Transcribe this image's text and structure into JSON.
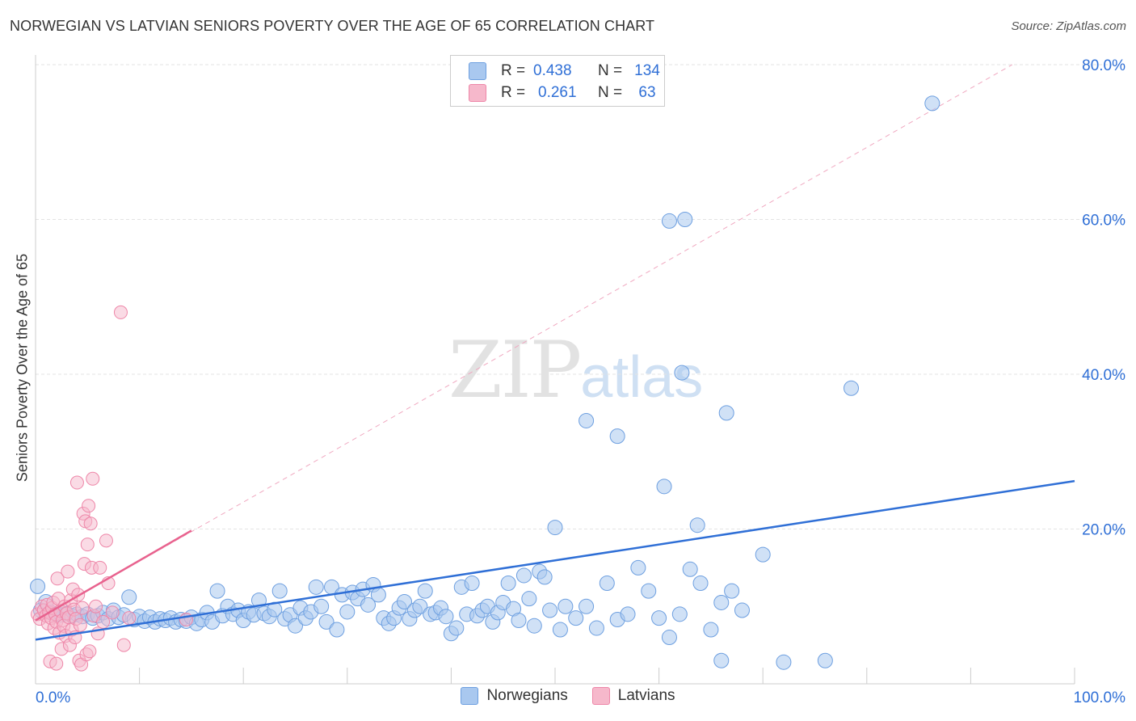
{
  "title": "NORWEGIAN VS LATVIAN SENIORS POVERTY OVER THE AGE OF 65 CORRELATION CHART",
  "source": "Source: ZipAtlas.com",
  "watermark": {
    "zip": "ZIP",
    "atlas": "atlas"
  },
  "stats": {
    "r_label": "R =",
    "n_label": "N =",
    "norwegians": {
      "r": "0.438",
      "n": "134"
    },
    "latvians": {
      "r": "0.261",
      "n": "63"
    }
  },
  "legend": {
    "norwegians": "Norwegians",
    "latvians": "Latvians"
  },
  "colors": {
    "blue_fill": "#a9c8ef",
    "blue_stroke": "#6d9fe0",
    "blue_line": "#2f6fd6",
    "pink_fill": "#f6b8cb",
    "pink_stroke": "#ee86a8",
    "pink_line": "#e8628e",
    "axis_text": "#2f6fd6"
  },
  "chart_data": {
    "type": "scatter",
    "title": "NORWEGIAN VS LATVIAN SENIORS POVERTY OVER THE AGE OF 65 CORRELATION CHART",
    "xlabel": "",
    "ylabel": "Seniors Poverty Over the Age of 65",
    "xlim": [
      0,
      100
    ],
    "ylim": [
      0,
      80
    ],
    "x_tick_labels": [
      "0.0%",
      "100.0%"
    ],
    "y_ticks": [
      20,
      40,
      60,
      80
    ],
    "y_tick_labels": [
      "20.0%",
      "40.0%",
      "60.0%",
      "80.0%"
    ],
    "grid": true,
    "series": [
      {
        "name": "Norwegians",
        "r": 0.438,
        "n": 134,
        "trend": {
          "x": [
            0,
            100
          ],
          "y": [
            5.7,
            26.2
          ]
        },
        "points": [
          [
            0.2,
            12.6
          ],
          [
            0.5,
            9.5
          ],
          [
            1.0,
            10.6
          ],
          [
            1.5,
            9.2
          ],
          [
            2.0,
            9.0
          ],
          [
            2.5,
            8.9
          ],
          [
            3.0,
            9.1
          ],
          [
            3.5,
            8.8
          ],
          [
            4.0,
            9.0
          ],
          [
            4.5,
            8.7
          ],
          [
            5.0,
            9.0
          ],
          [
            5.5,
            8.5
          ],
          [
            6.0,
            8.8
          ],
          [
            6.5,
            9.2
          ],
          [
            7.0,
            8.4
          ],
          [
            7.5,
            9.5
          ],
          [
            8.0,
            8.6
          ],
          [
            8.5,
            8.9
          ],
          [
            9.0,
            11.2
          ],
          [
            9.5,
            8.3
          ],
          [
            10.0,
            8.7
          ],
          [
            10.5,
            8.1
          ],
          [
            11.0,
            8.6
          ],
          [
            11.5,
            8.0
          ],
          [
            12.0,
            8.4
          ],
          [
            12.5,
            8.2
          ],
          [
            13.0,
            8.5
          ],
          [
            13.5,
            8.0
          ],
          [
            14.0,
            8.3
          ],
          [
            14.5,
            8.1
          ],
          [
            15.0,
            8.6
          ],
          [
            15.5,
            7.8
          ],
          [
            16.0,
            8.3
          ],
          [
            16.5,
            9.2
          ],
          [
            17.0,
            8.0
          ],
          [
            17.5,
            12.0
          ],
          [
            18.0,
            8.8
          ],
          [
            18.5,
            10.0
          ],
          [
            19.0,
            9.0
          ],
          [
            19.5,
            9.5
          ],
          [
            20.0,
            8.2
          ],
          [
            20.5,
            9.3
          ],
          [
            21.0,
            8.9
          ],
          [
            21.5,
            10.8
          ],
          [
            22.0,
            9.1
          ],
          [
            22.5,
            8.7
          ],
          [
            23.0,
            9.6
          ],
          [
            23.5,
            12.0
          ],
          [
            24.0,
            8.4
          ],
          [
            24.5,
            8.9
          ],
          [
            25.0,
            7.5
          ],
          [
            25.5,
            9.8
          ],
          [
            26.0,
            8.5
          ],
          [
            26.5,
            9.3
          ],
          [
            27.0,
            12.5
          ],
          [
            27.5,
            10.0
          ],
          [
            28.0,
            8.0
          ],
          [
            28.5,
            12.5
          ],
          [
            29.0,
            7.0
          ],
          [
            29.5,
            11.5
          ],
          [
            30.0,
            9.3
          ],
          [
            30.5,
            11.8
          ],
          [
            31.0,
            11.0
          ],
          [
            31.5,
            12.2
          ],
          [
            32.0,
            10.2
          ],
          [
            32.5,
            12.8
          ],
          [
            33.0,
            11.5
          ],
          [
            33.5,
            8.5
          ],
          [
            34.0,
            7.8
          ],
          [
            34.5,
            8.5
          ],
          [
            35.0,
            9.8
          ],
          [
            35.5,
            10.6
          ],
          [
            36.0,
            8.4
          ],
          [
            36.5,
            9.5
          ],
          [
            37.0,
            10.0
          ],
          [
            37.5,
            12.0
          ],
          [
            38.0,
            9.0
          ],
          [
            38.5,
            9.2
          ],
          [
            39.0,
            9.8
          ],
          [
            39.5,
            8.7
          ],
          [
            40.0,
            6.5
          ],
          [
            40.5,
            7.2
          ],
          [
            41.0,
            12.5
          ],
          [
            41.5,
            9.0
          ],
          [
            42.0,
            13.0
          ],
          [
            42.5,
            8.8
          ],
          [
            43.0,
            9.5
          ],
          [
            43.5,
            10.0
          ],
          [
            44.0,
            8.0
          ],
          [
            44.5,
            9.2
          ],
          [
            45.0,
            10.5
          ],
          [
            45.5,
            13.0
          ],
          [
            46.0,
            9.7
          ],
          [
            46.5,
            8.2
          ],
          [
            47.0,
            14.0
          ],
          [
            47.5,
            11.0
          ],
          [
            48.0,
            7.5
          ],
          [
            48.5,
            14.5
          ],
          [
            49.0,
            13.8
          ],
          [
            49.5,
            9.5
          ],
          [
            50.0,
            20.2
          ],
          [
            50.5,
            7.0
          ],
          [
            51.0,
            10.0
          ],
          [
            52.0,
            8.5
          ],
          [
            53.0,
            10.0
          ],
          [
            54.0,
            7.2
          ],
          [
            55.0,
            13.0
          ],
          [
            56.0,
            8.3
          ],
          [
            57.0,
            9.0
          ],
          [
            58.0,
            15.0
          ],
          [
            59.0,
            12.0
          ],
          [
            60.0,
            8.5
          ],
          [
            61.0,
            6.0
          ],
          [
            62.0,
            9.0
          ],
          [
            63.0,
            14.8
          ],
          [
            64.0,
            13.0
          ],
          [
            65.0,
            7.0
          ],
          [
            66.0,
            10.5
          ],
          [
            67.0,
            12.0
          ],
          [
            68.0,
            9.5
          ],
          [
            53.0,
            34.0
          ],
          [
            56.0,
            32.0
          ],
          [
            60.5,
            25.5
          ],
          [
            61.0,
            59.8
          ],
          [
            62.5,
            60.0
          ],
          [
            62.2,
            40.2
          ],
          [
            63.7,
            20.5
          ],
          [
            66.5,
            35.0
          ],
          [
            70.0,
            16.7
          ],
          [
            72.0,
            2.8
          ],
          [
            78.5,
            38.2
          ],
          [
            86.3,
            75.0
          ],
          [
            76.0,
            3.0
          ],
          [
            66.0,
            3.0
          ]
        ]
      },
      {
        "name": "Latvians",
        "r": 0.261,
        "n": 63,
        "trend": {
          "x": [
            0,
            15
          ],
          "y": [
            8.2,
            19.8
          ]
        },
        "trend_extended": {
          "x": [
            0,
            94
          ],
          "y": [
            8.2,
            80
          ]
        },
        "points": [
          [
            0.2,
            9.0
          ],
          [
            0.4,
            8.4
          ],
          [
            0.6,
            10.0
          ],
          [
            0.8,
            9.5
          ],
          [
            1.0,
            8.8
          ],
          [
            1.1,
            10.2
          ],
          [
            1.2,
            7.8
          ],
          [
            1.3,
            9.2
          ],
          [
            1.5,
            8.5
          ],
          [
            1.6,
            9.8
          ],
          [
            1.7,
            10.5
          ],
          [
            1.8,
            7.2
          ],
          [
            1.9,
            9.0
          ],
          [
            2.0,
            8.0
          ],
          [
            2.1,
            13.6
          ],
          [
            2.2,
            11.0
          ],
          [
            2.3,
            6.6
          ],
          [
            2.4,
            9.4
          ],
          [
            2.5,
            4.5
          ],
          [
            2.6,
            8.2
          ],
          [
            2.7,
            7.5
          ],
          [
            2.8,
            10.0
          ],
          [
            2.9,
            6.2
          ],
          [
            3.0,
            9.1
          ],
          [
            3.1,
            14.5
          ],
          [
            3.2,
            8.6
          ],
          [
            3.3,
            5.0
          ],
          [
            3.4,
            10.8
          ],
          [
            3.5,
            7.0
          ],
          [
            3.6,
            12.2
          ],
          [
            3.7,
            9.6
          ],
          [
            3.8,
            6.0
          ],
          [
            3.9,
            8.4
          ],
          [
            4.0,
            26.0
          ],
          [
            4.1,
            11.5
          ],
          [
            4.2,
            3.0
          ],
          [
            4.3,
            7.6
          ],
          [
            4.4,
            2.5
          ],
          [
            4.5,
            9.8
          ],
          [
            4.6,
            22.0
          ],
          [
            4.7,
            15.5
          ],
          [
            4.8,
            21.0
          ],
          [
            4.9,
            3.8
          ],
          [
            5.0,
            18.0
          ],
          [
            5.1,
            23.0
          ],
          [
            5.2,
            4.2
          ],
          [
            5.3,
            20.7
          ],
          [
            5.4,
            15.0
          ],
          [
            5.5,
            26.5
          ],
          [
            5.6,
            8.8
          ],
          [
            5.8,
            10.0
          ],
          [
            6.0,
            6.5
          ],
          [
            6.2,
            15.0
          ],
          [
            6.5,
            8.0
          ],
          [
            6.8,
            18.5
          ],
          [
            7.0,
            13.0
          ],
          [
            7.4,
            9.2
          ],
          [
            8.2,
            48.0
          ],
          [
            8.5,
            5.0
          ],
          [
            9.0,
            8.5
          ],
          [
            14.5,
            8.3
          ],
          [
            1.4,
            2.9
          ],
          [
            2.0,
            2.6
          ]
        ]
      }
    ]
  }
}
